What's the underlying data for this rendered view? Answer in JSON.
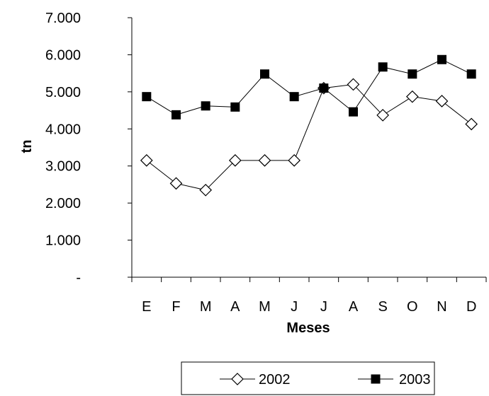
{
  "chart_data": {
    "type": "line",
    "title": "",
    "xlabel": "Meses",
    "ylabel": "tn",
    "categories": [
      "E",
      "F",
      "M",
      "A",
      "M",
      "J",
      "J",
      "A",
      "S",
      "O",
      "N",
      "D"
    ],
    "ylim": [
      0,
      7000
    ],
    "yticks": [
      0,
      1000,
      2000,
      3000,
      4000,
      5000,
      6000,
      7000
    ],
    "ytick_labels": [
      "-",
      "1.000",
      "2.000",
      "3.000",
      "4.000",
      "5.000",
      "6.000",
      "7.000"
    ],
    "grid": false,
    "legend_position": "bottom",
    "series": [
      {
        "name": "2002",
        "marker": "diamond-open",
        "color": "#000000",
        "values": [
          3150,
          2530,
          2350,
          3150,
          3150,
          3150,
          5100,
          5200,
          4370,
          4870,
          4750,
          4130
        ]
      },
      {
        "name": "2003",
        "marker": "square-filled",
        "color": "#000000",
        "values": [
          4870,
          4380,
          4620,
          4590,
          5480,
          4870,
          5100,
          4460,
          5670,
          5480,
          5870,
          5480
        ]
      }
    ]
  }
}
